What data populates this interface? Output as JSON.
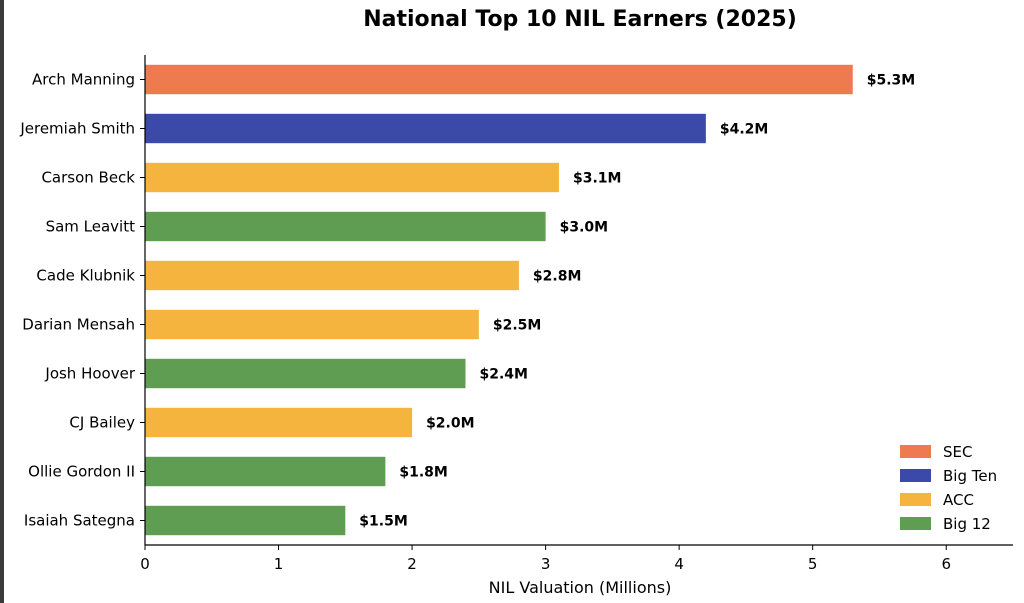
{
  "chart_data": {
    "type": "bar",
    "orientation": "horizontal",
    "title": "National Top 10 NIL Earners (2025)",
    "xlabel": "NIL Valuation (Millions)",
    "ylabel": "",
    "xlim": [
      0,
      6.5
    ],
    "xticks": [
      0,
      1,
      2,
      3,
      4,
      5,
      6
    ],
    "grid": false,
    "legend_position": "bottom-right",
    "categories": [
      "Arch Manning",
      "Jeremiah Smith",
      "Carson Beck",
      "Sam Leavitt",
      "Cade Klubnik",
      "Darian Mensah",
      "Josh Hoover",
      "CJ Bailey",
      "Ollie Gordon II",
      "Isaiah Sategna"
    ],
    "values": [
      5.3,
      4.2,
      3.1,
      3.0,
      2.8,
      2.5,
      2.4,
      2.0,
      1.8,
      1.5
    ],
    "value_labels": [
      "$5.3M",
      "$4.2M",
      "$3.1M",
      "$3.0M",
      "$2.8M",
      "$2.5M",
      "$2.4M",
      "$2.0M",
      "$1.8M",
      "$1.5M"
    ],
    "groups": [
      "SEC",
      "Big Ten",
      "ACC",
      "Big 12",
      "ACC",
      "ACC",
      "Big 12",
      "ACC",
      "Big 12",
      "Big 12"
    ],
    "legend": [
      {
        "name": "SEC",
        "color": "#ee7b50"
      },
      {
        "name": "Big Ten",
        "color": "#3b4aa8"
      },
      {
        "name": "ACC",
        "color": "#f5b43e"
      },
      {
        "name": "Big 12",
        "color": "#5f9e52"
      }
    ]
  }
}
